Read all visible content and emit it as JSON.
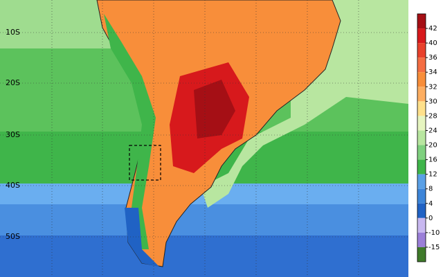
{
  "map": {
    "lat_labels": [
      "10S",
      "20S",
      "30S",
      "40S",
      "50S"
    ],
    "colorbar": {
      "levels": [
        42,
        40,
        36,
        34,
        32,
        30,
        28,
        24,
        20,
        16,
        12,
        8,
        4,
        0,
        -10,
        -15
      ],
      "colors": [
        "#a50f15",
        "#d7191c",
        "#e8412c",
        "#f46d43",
        "#f88e3a",
        "#fdae61",
        "#fee08b",
        "#e6f5c0",
        "#b8e6a0",
        "#7fd07f",
        "#3fb54a",
        "#5aa0e6",
        "#3d85d8",
        "#2062c4",
        "#c8b8f0",
        "#9b7fd8",
        "#3f7a2a"
      ]
    }
  }
}
